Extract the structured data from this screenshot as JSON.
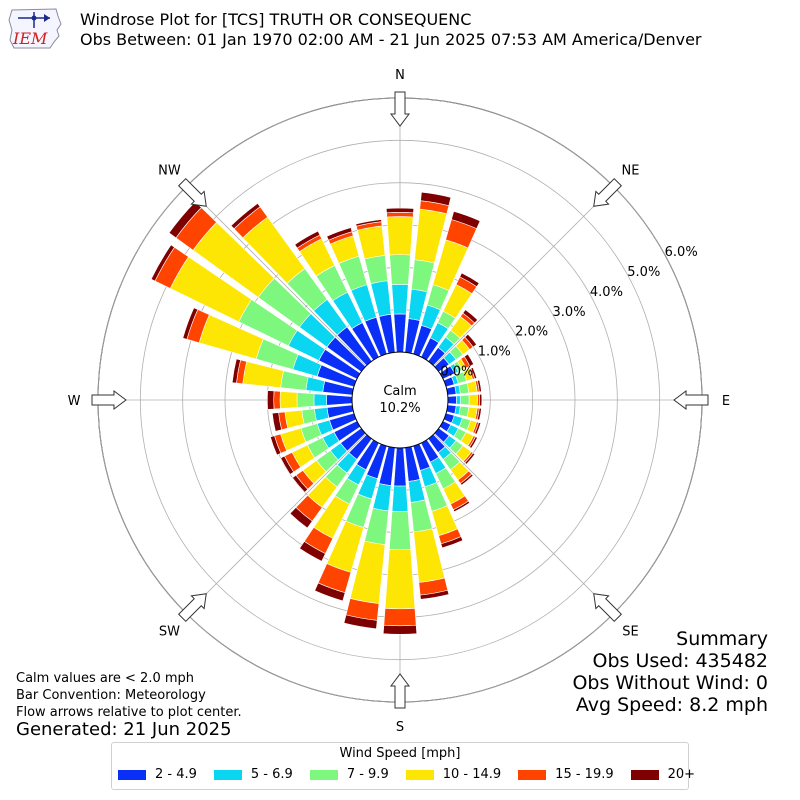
{
  "header": {
    "logo_text": "IEM",
    "title_line1": "Windrose Plot for [TCS] TRUTH OR CONSEQUENC",
    "title_line2": "Obs Between: 01 Jan 1970 02:00 AM - 21 Jun 2025 07:53 AM America/Denver"
  },
  "chart_data": {
    "type": "windrose",
    "radial_unit": "%",
    "rmax": 6.0,
    "radial_ticks": [
      "0.0%",
      "1.0%",
      "2.0%",
      "3.0%",
      "4.0%",
      "5.0%",
      "6.0%"
    ],
    "calm": {
      "label": "Calm",
      "value": "10.2%"
    },
    "compass_labels": [
      "N",
      "NE",
      "E",
      "SE",
      "S",
      "SW",
      "W",
      "NW"
    ],
    "sector_width_deg": 10,
    "directions_deg": [
      0,
      10,
      20,
      30,
      40,
      50,
      60,
      70,
      80,
      90,
      100,
      110,
      120,
      130,
      140,
      150,
      160,
      170,
      180,
      190,
      200,
      210,
      220,
      230,
      240,
      250,
      260,
      270,
      280,
      290,
      300,
      310,
      320,
      330,
      340,
      350
    ],
    "legend_title": "Wind Speed [mph]",
    "bins": [
      {
        "label": "2 - 4.9",
        "color": "#0a2ff7"
      },
      {
        "label": "5 - 6.9",
        "color": "#0ad6f2"
      },
      {
        "label": "7 - 9.9",
        "color": "#7df77d"
      },
      {
        "label": "10 - 14.9",
        "color": "#fde603"
      },
      {
        "label": "15 - 19.9",
        "color": "#ff4400"
      },
      {
        "label": "20+",
        "color": "#7f0000"
      }
    ],
    "cumulative_percent": [
      [
        0.9,
        1.6,
        2.3,
        3.2,
        3.3,
        3.4
      ],
      [
        0.8,
        1.5,
        2.2,
        3.4,
        3.6,
        3.8
      ],
      [
        0.7,
        1.2,
        1.7,
        2.8,
        3.3,
        3.5
      ],
      [
        0.5,
        0.9,
        1.2,
        1.9,
        2.1,
        2.2
      ],
      [
        0.4,
        0.7,
        0.9,
        1.3,
        1.4,
        1.5
      ],
      [
        0.3,
        0.5,
        0.7,
        0.9,
        1.0,
        1.1
      ],
      [
        0.3,
        0.4,
        0.5,
        0.6,
        0.7,
        0.8
      ],
      [
        0.2,
        0.3,
        0.5,
        0.65,
        0.7,
        0.75
      ],
      [
        0.2,
        0.3,
        0.5,
        0.7,
        0.75,
        0.8
      ],
      [
        0.2,
        0.3,
        0.5,
        0.7,
        0.75,
        0.8
      ],
      [
        0.2,
        0.3,
        0.5,
        0.7,
        0.75,
        0.8
      ],
      [
        0.2,
        0.4,
        0.6,
        0.75,
        0.8,
        0.85
      ],
      [
        0.2,
        0.4,
        0.6,
        0.8,
        0.85,
        0.9
      ],
      [
        0.3,
        0.5,
        0.7,
        0.95,
        1.0,
        1.05
      ],
      [
        0.4,
        0.6,
        0.9,
        1.2,
        1.3,
        1.35
      ],
      [
        0.5,
        0.8,
        1.2,
        1.6,
        1.75,
        1.8
      ],
      [
        0.6,
        1.0,
        1.6,
        2.2,
        2.4,
        2.5
      ],
      [
        0.8,
        1.3,
        2.0,
        3.2,
        3.5,
        3.6
      ],
      [
        0.9,
        1.5,
        2.4,
        3.8,
        4.2,
        4.4
      ],
      [
        0.9,
        1.5,
        2.3,
        3.7,
        4.1,
        4.3
      ],
      [
        0.8,
        1.3,
        2.0,
        3.1,
        3.6,
        3.8
      ],
      [
        0.7,
        1.1,
        1.6,
        2.5,
        2.9,
        3.1
      ],
      [
        0.6,
        1.0,
        1.4,
        2.0,
        2.4,
        2.6
      ],
      [
        0.6,
        0.9,
        1.3,
        1.7,
        1.9,
        2.0
      ],
      [
        0.6,
        0.9,
        1.3,
        1.7,
        1.9,
        2.0
      ],
      [
        0.6,
        0.9,
        1.3,
        1.8,
        1.95,
        2.05
      ],
      [
        0.6,
        0.9,
        1.2,
        1.6,
        1.75,
        1.9
      ],
      [
        0.6,
        0.9,
        1.3,
        1.7,
        1.85,
        2.0
      ],
      [
        0.7,
        1.1,
        1.7,
        2.6,
        2.75,
        2.85
      ],
      [
        0.9,
        1.5,
        2.4,
        3.8,
        4.1,
        4.2
      ],
      [
        1.0,
        1.8,
        3.1,
        4.9,
        5.3,
        5.4
      ],
      [
        1.0,
        1.8,
        3.0,
        4.9,
        5.4,
        5.6
      ],
      [
        1.0,
        1.8,
        2.7,
        4.2,
        4.5,
        4.6
      ],
      [
        0.9,
        1.7,
        2.4,
        3.1,
        3.2,
        3.3
      ],
      [
        0.9,
        1.7,
        2.4,
        2.9,
        3.0,
        3.1
      ],
      [
        0.9,
        1.7,
        2.3,
        3.0,
        3.1,
        3.15
      ]
    ]
  },
  "notes": {
    "line1": "Calm values are < 2.0 mph",
    "line2": "Bar Convention: Meteorology",
    "line3": "Flow arrows relative to plot center.",
    "generated": "Generated: 21 Jun 2025"
  },
  "summary": {
    "title": "Summary",
    "obs_used": "Obs Used: 435482",
    "obs_without_wind": "Obs Without Wind: 0",
    "avg_speed": "Avg Speed: 8.2 mph"
  }
}
